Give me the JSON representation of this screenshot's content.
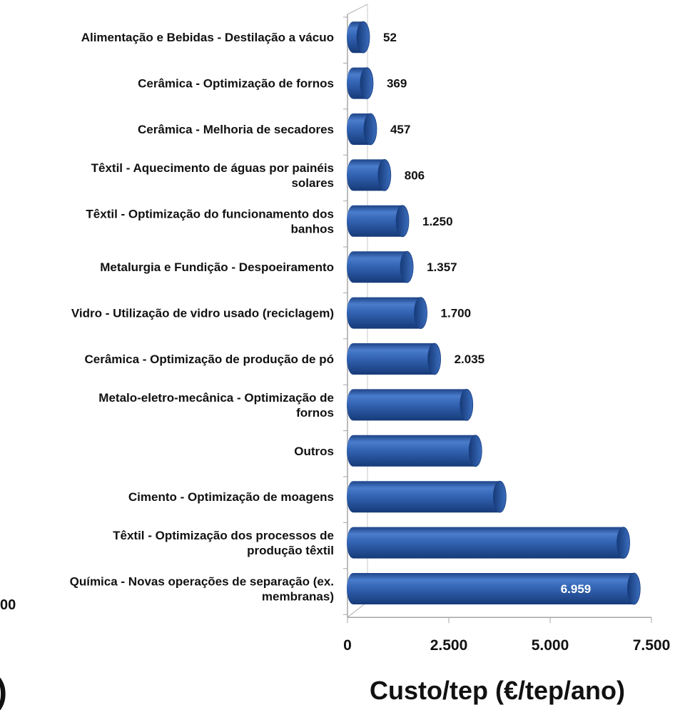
{
  "chart_data": {
    "type": "bar",
    "orientation": "horizontal",
    "style": "3d-cylinder",
    "categories": [
      [
        "Alimentação e Bebidas - Destilação a vácuo"
      ],
      [
        "Cerâmica - Optimização de fornos"
      ],
      [
        "Cerâmica - Melhoria de secadores"
      ],
      [
        "Têxtil - Aquecimento de águas por painéis",
        "solares"
      ],
      [
        "Têxtil - Optimização do funcionamento dos",
        "banhos"
      ],
      [
        "Metalurgia e Fundição - Despoeiramento"
      ],
      [
        "Vidro - Utilização de vidro usado (reciclagem)"
      ],
      [
        "Cerâmica - Optimização de produção de pó"
      ],
      [
        "Metalo-eletro-mecânica - Optimização de",
        "fornos"
      ],
      [
        "Outros"
      ],
      [
        "Cimento - Optimização de moagens"
      ],
      [
        "Têxtil - Optimização dos processos de",
        "produção têxtil"
      ],
      [
        "Química - Novas operações de separação (ex.",
        "membranas)"
      ]
    ],
    "values": [
      52,
      369,
      457,
      806,
      1250,
      1357,
      1700,
      2035,
      2830,
      3050,
      3650,
      6700,
      6959
    ],
    "data_labels": [
      "52",
      "369",
      "457",
      "806",
      "1.250",
      "1.357",
      "1.700",
      "2.035",
      "",
      "",
      "",
      "",
      "6.959"
    ],
    "xlabel": "Custo/tep (€/tep/ano)",
    "xlim": [
      0,
      7500
    ],
    "xticks": [
      0,
      2500,
      5000,
      7500
    ],
    "xtick_labels": [
      "0",
      "2.500",
      "5.000",
      "7.500"
    ],
    "grid": false,
    "legend": "none",
    "bar_color": "#2f5da8"
  },
  "page": {
    "left_fragments": [
      "00",
      ")"
    ]
  }
}
